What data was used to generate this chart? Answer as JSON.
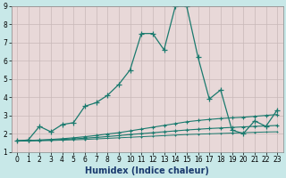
{
  "xlabel": "Humidex (Indice chaleur)",
  "x": [
    0,
    1,
    2,
    3,
    4,
    5,
    6,
    7,
    8,
    9,
    10,
    11,
    12,
    13,
    14,
    15,
    16,
    17,
    18,
    19,
    20,
    21,
    22,
    23
  ],
  "line1": [
    1.6,
    1.65,
    2.4,
    2.1,
    2.5,
    2.6,
    3.5,
    3.7,
    4.1,
    4.7,
    5.5,
    7.5,
    7.5,
    6.6,
    9.0,
    9.0,
    6.2,
    3.9,
    4.4,
    2.2,
    2.0,
    2.7,
    2.4,
    3.3
  ],
  "line2": [
    1.6,
    1.62,
    1.65,
    1.68,
    1.72,
    1.77,
    1.83,
    1.9,
    1.98,
    2.05,
    2.15,
    2.25,
    2.35,
    2.45,
    2.55,
    2.65,
    2.72,
    2.78,
    2.83,
    2.87,
    2.9,
    2.95,
    3.0,
    3.05
  ],
  "line3": [
    1.6,
    1.61,
    1.63,
    1.65,
    1.68,
    1.71,
    1.75,
    1.79,
    1.84,
    1.89,
    1.95,
    2.0,
    2.05,
    2.1,
    2.15,
    2.2,
    2.24,
    2.28,
    2.31,
    2.34,
    2.37,
    2.4,
    2.42,
    2.45
  ],
  "line4": [
    1.6,
    1.6,
    1.61,
    1.62,
    1.64,
    1.66,
    1.68,
    1.71,
    1.74,
    1.77,
    1.8,
    1.83,
    1.86,
    1.89,
    1.92,
    1.95,
    1.97,
    1.99,
    2.01,
    2.03,
    2.05,
    2.07,
    2.09,
    2.1
  ],
  "color": "#1a7a6e",
  "bg_outer": "#c8e8e8",
  "bg_plot": "#e8d8d8",
  "grid_color": "#c8b8b8",
  "ylim": [
    1,
    9
  ],
  "xlim": [
    -0.5,
    23.5
  ],
  "yticks": [
    1,
    2,
    3,
    4,
    5,
    6,
    7,
    8,
    9
  ],
  "xticks": [
    0,
    1,
    2,
    3,
    4,
    5,
    6,
    7,
    8,
    9,
    10,
    11,
    12,
    13,
    14,
    15,
    16,
    17,
    18,
    19,
    20,
    21,
    22,
    23
  ],
  "xlabel_color": "#1a3a6e",
  "tick_fontsize": 5.5,
  "xlabel_fontsize": 7
}
